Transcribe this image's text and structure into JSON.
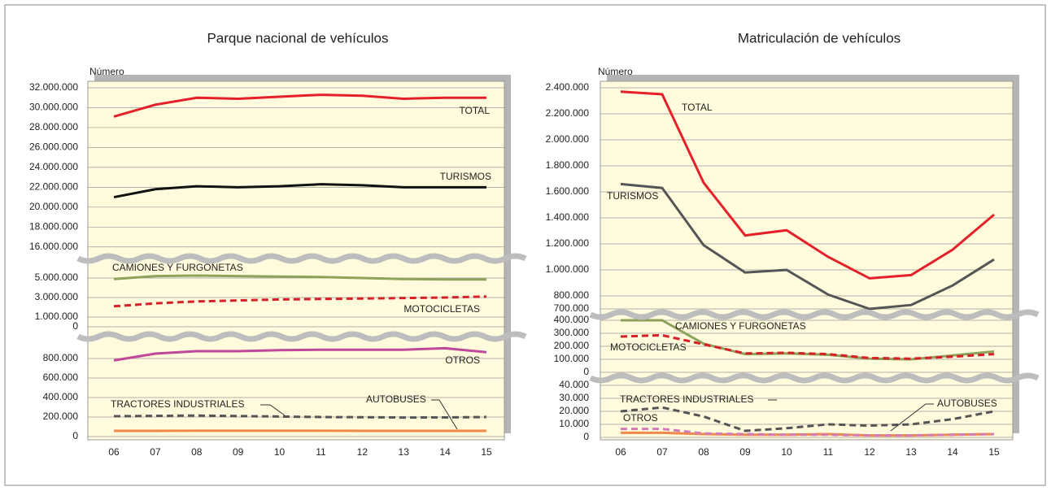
{
  "chart_data": [
    {
      "type": "line",
      "title": "Parque nacional de vehículos",
      "y_label": "Número",
      "categories": [
        "06",
        "07",
        "08",
        "09",
        "10",
        "11",
        "12",
        "13",
        "14",
        "15"
      ],
      "panels": [
        {
          "ylim": [
            15000000,
            32000000
          ],
          "yticks": [
            {
              "value": 16000000,
              "label": "16.000.000"
            },
            {
              "value": 18000000,
              "label": "18.000.000"
            },
            {
              "value": 20000000,
              "label": "20.000.000"
            },
            {
              "value": 22000000,
              "label": "22.000.000"
            },
            {
              "value": 24000000,
              "label": "24.000.000"
            },
            {
              "value": 26000000,
              "label": "26.000.000"
            },
            {
              "value": 28000000,
              "label": "28.000.000"
            },
            {
              "value": 30000000,
              "label": "30.000.000"
            },
            {
              "value": 32000000,
              "label": "32.000.000"
            }
          ],
          "series": [
            {
              "name": "TOTAL",
              "color": "#e4202a",
              "dashed": false,
              "values": [
                29100000,
                30300000,
                31000000,
                30900000,
                31100000,
                31300000,
                31200000,
                30900000,
                31000000,
                31000000
              ]
            },
            {
              "name": "TURISMOS",
              "color": "#111111",
              "dashed": false,
              "values": [
                21000000,
                21800000,
                22100000,
                22000000,
                22100000,
                22300000,
                22200000,
                22000000,
                22000000,
                22000000
              ]
            }
          ]
        },
        {
          "ylim": [
            0,
            6500000
          ],
          "yticks": [
            0,
            {
              "value": 1000000,
              "label": "1.000.000"
            },
            {
              "value": 3000000,
              "label": "3.000.000"
            },
            {
              "value": 5000000,
              "label": "5.000.000"
            }
          ],
          "series": [
            {
              "name": "CAMIONES Y FURGONETAS",
              "color": "#8da25a",
              "dashed": false,
              "values": [
                4900000,
                5200000,
                5250000,
                5200000,
                5150000,
                5100000,
                5000000,
                4900000,
                4850000,
                4850000
              ]
            },
            {
              "name": "MOTOCICLETAS",
              "color": "#d61f26",
              "dashed": true,
              "values": [
                2100000,
                2400000,
                2600000,
                2700000,
                2800000,
                2850000,
                2900000,
                2950000,
                3000000,
                3100000
              ]
            }
          ]
        },
        {
          "ylim": [
            0,
            1000000
          ],
          "yticks": [
            0,
            {
              "value": 200000,
              "label": "200.000"
            },
            {
              "value": 400000,
              "label": "400.000"
            },
            {
              "value": 600000,
              "label": "600.000"
            },
            {
              "value": 800000,
              "label": "800.000"
            }
          ],
          "series": [
            {
              "name": "OTROS",
              "color": "#c0479a",
              "dashed": false,
              "values": [
                780000,
                850000,
                875000,
                875000,
                885000,
                890000,
                890000,
                890000,
                905000,
                865000
              ]
            },
            {
              "name": "TRACTORES INDUSTRIALES",
              "color": "#555555",
              "dashed": true,
              "values": [
                208000,
                212000,
                215000,
                210000,
                205000,
                200000,
                198000,
                195000,
                196000,
                200000
              ]
            },
            {
              "name": "AUTOBUSES",
              "color": "#f08a4b",
              "dashed": false,
              "values": [
                58000,
                58000,
                59000,
                59000,
                59000,
                59000,
                58000,
                58000,
                58000,
                58000
              ]
            }
          ]
        }
      ]
    },
    {
      "type": "line",
      "title": "Matriculación de vehículos",
      "y_label": "Número",
      "categories": [
        "06",
        "07",
        "08",
        "09",
        "10",
        "11",
        "12",
        "13",
        "14",
        "15"
      ],
      "panels": [
        {
          "ylim": [
            650000,
            2400000
          ],
          "yticks": [
            {
              "value": 700000,
              "label": "700.000"
            },
            {
              "value": 800000,
              "label": "800.000"
            },
            {
              "value": 1000000,
              "label": "1.000.000"
            },
            {
              "value": 1200000,
              "label": "1.200.000"
            },
            {
              "value": 1400000,
              "label": "1.400.000"
            },
            {
              "value": 1600000,
              "label": "1.600.000"
            },
            {
              "value": 1800000,
              "label": "1.800.000"
            },
            {
              "value": 2000000,
              "label": "2.000.000"
            },
            {
              "value": 2200000,
              "label": "2.200.000"
            },
            {
              "value": 2400000,
              "label": "2.400.000"
            }
          ],
          "series": [
            {
              "name": "TOTAL",
              "color": "#e4202a",
              "dashed": false,
              "values": [
                2370000,
                2350000,
                1670000,
                1265000,
                1305000,
                1100000,
                935000,
                960000,
                1155000,
                1425000
              ]
            },
            {
              "name": "TURISMOS",
              "color": "#555555",
              "dashed": false,
              "values": [
                1660000,
                1630000,
                1190000,
                980000,
                1000000,
                810000,
                700000,
                730000,
                880000,
                1080000
              ]
            }
          ]
        },
        {
          "ylim": [
            0,
            450000
          ],
          "yticks": [
            0,
            {
              "value": 100000,
              "label": "100.000"
            },
            {
              "value": 200000,
              "label": "200.000"
            },
            {
              "value": 300000,
              "label": "300.000"
            },
            {
              "value": 400000,
              "label": "400.000"
            }
          ],
          "series": [
            {
              "name": "CAMIONES Y FURGONETAS",
              "color": "#8da25a",
              "dashed": false,
              "values": [
                400000,
                400000,
                220000,
                140000,
                145000,
                135000,
                105000,
                100000,
                130000,
                160000
              ]
            },
            {
              "name": "MOTOCICLETAS",
              "color": "#d61f26",
              "dashed": true,
              "values": [
                275000,
                285000,
                215000,
                145000,
                150000,
                140000,
                110000,
                105000,
                120000,
                140000
              ]
            }
          ]
        },
        {
          "ylim": [
            0,
            45000
          ],
          "yticks": [
            0,
            {
              "value": 10000,
              "label": "10.000"
            },
            {
              "value": 20000,
              "label": "20.000"
            },
            {
              "value": 30000,
              "label": "30.000"
            },
            {
              "value": 40000,
              "label": "40.000"
            }
          ],
          "series": [
            {
              "name": "TRACTORES INDUSTRIALES",
              "color": "#555555",
              "dashed": true,
              "values": [
                20000,
                23000,
                16000,
                5000,
                7000,
                10000,
                9000,
                10000,
                14000,
                20000
              ]
            },
            {
              "name": "AUTOBUSES",
              "color": "#f08a4b",
              "dashed": false,
              "values": [
                3500,
                3500,
                2500,
                2000,
                2000,
                2500,
                1500,
                1500,
                2000,
                2500
              ]
            },
            {
              "name": "OTROS",
              "color": "#d27bb5",
              "dashed": true,
              "values": [
                6500,
                6500,
                3000,
                2500,
                2000,
                2000,
                1500,
                1500,
                2000,
                2500
              ]
            }
          ]
        }
      ]
    }
  ]
}
